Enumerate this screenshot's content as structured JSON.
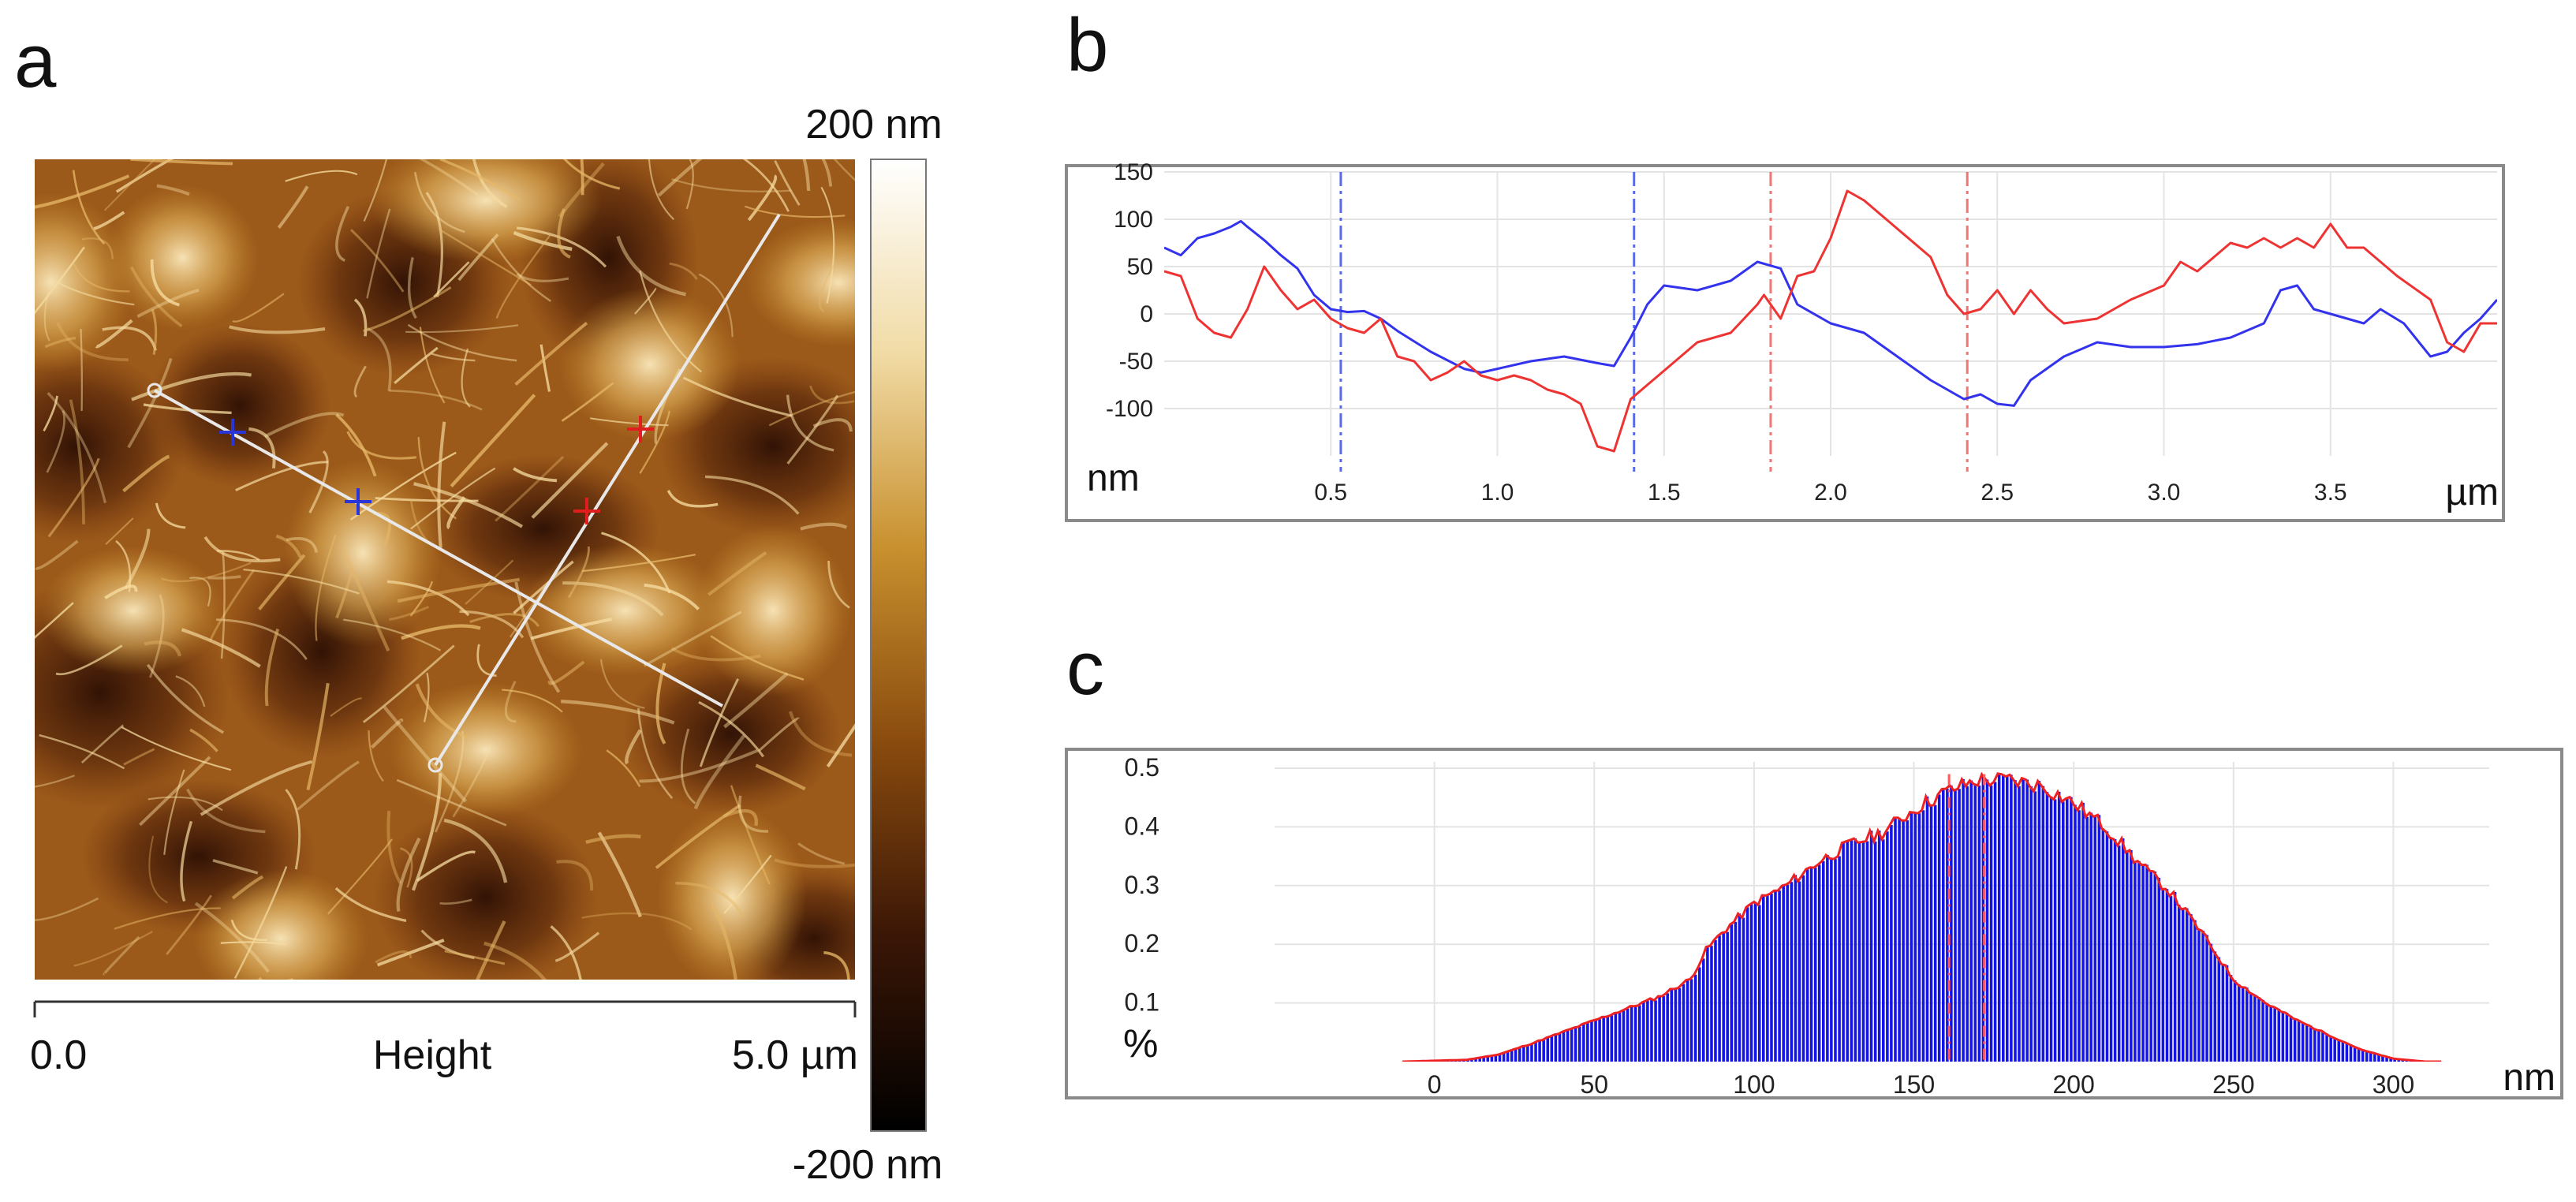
{
  "panels": {
    "a": "a",
    "b": "b",
    "c": "c"
  },
  "afm_image": {
    "colorbar_top": "200 nm",
    "colorbar_bottom": "-200 nm",
    "scale_start": "0.0",
    "scale_title": "Height",
    "scale_end": "5.0 µm",
    "colorbar_colors": [
      "#ffffff",
      "#f1dba5",
      "#c8902e",
      "#8a4b0e",
      "#3a1606",
      "#000000"
    ]
  },
  "chart_data": [
    {
      "type": "line",
      "panel": "b",
      "xlabel": "µm",
      "ylabel": "nm",
      "x_ticks": [
        "0.5",
        "1.0",
        "1.5",
        "2.0",
        "2.5",
        "3.0",
        "3.5"
      ],
      "y_ticks": [
        "150",
        "100",
        "50",
        "0",
        "-50",
        "-100"
      ],
      "xlim": [
        0.0,
        4.0
      ],
      "ylim": [
        -150,
        150
      ],
      "grid": true,
      "markers_x": [
        {
          "x": 0.53,
          "color": "#5a6ae6"
        },
        {
          "x": 1.41,
          "color": "#5a6ae6"
        },
        {
          "x": 1.82,
          "color": "#f07575"
        },
        {
          "x": 2.41,
          "color": "#f07575"
        }
      ],
      "series": [
        {
          "color": "#3333ee",
          "points": [
            [
              0.0,
              70
            ],
            [
              0.05,
              62
            ],
            [
              0.1,
              80
            ],
            [
              0.15,
              85
            ],
            [
              0.2,
              92
            ],
            [
              0.23,
              98
            ],
            [
              0.25,
              92
            ],
            [
              0.3,
              78
            ],
            [
              0.35,
              62
            ],
            [
              0.4,
              48
            ],
            [
              0.45,
              20
            ],
            [
              0.5,
              5
            ],
            [
              0.55,
              2
            ],
            [
              0.6,
              3
            ],
            [
              0.65,
              -5
            ],
            [
              0.7,
              -18
            ],
            [
              0.8,
              -40
            ],
            [
              0.9,
              -58
            ],
            [
              0.95,
              -62
            ],
            [
              1.0,
              -58
            ],
            [
              1.1,
              -50
            ],
            [
              1.2,
              -45
            ],
            [
              1.3,
              -52
            ],
            [
              1.35,
              -55
            ],
            [
              1.4,
              -25
            ],
            [
              1.45,
              10
            ],
            [
              1.5,
              30
            ],
            [
              1.6,
              25
            ],
            [
              1.7,
              35
            ],
            [
              1.78,
              55
            ],
            [
              1.85,
              48
            ],
            [
              1.9,
              10
            ],
            [
              2.0,
              -10
            ],
            [
              2.1,
              -20
            ],
            [
              2.2,
              -45
            ],
            [
              2.3,
              -70
            ],
            [
              2.4,
              -90
            ],
            [
              2.45,
              -85
            ],
            [
              2.5,
              -95
            ],
            [
              2.55,
              -97
            ],
            [
              2.6,
              -70
            ],
            [
              2.7,
              -45
            ],
            [
              2.8,
              -30
            ],
            [
              2.9,
              -35
            ],
            [
              3.0,
              -35
            ],
            [
              3.1,
              -32
            ],
            [
              3.2,
              -25
            ],
            [
              3.3,
              -10
            ],
            [
              3.35,
              25
            ],
            [
              3.4,
              30
            ],
            [
              3.45,
              5
            ],
            [
              3.5,
              0
            ],
            [
              3.6,
              -10
            ],
            [
              3.65,
              5
            ],
            [
              3.72,
              -10
            ],
            [
              3.8,
              -45
            ],
            [
              3.85,
              -40
            ],
            [
              3.9,
              -20
            ],
            [
              3.95,
              -5
            ],
            [
              4.0,
              15
            ]
          ]
        },
        {
          "color": "#ee3333",
          "points": [
            [
              0.0,
              45
            ],
            [
              0.05,
              40
            ],
            [
              0.1,
              -5
            ],
            [
              0.15,
              -20
            ],
            [
              0.2,
              -25
            ],
            [
              0.25,
              5
            ],
            [
              0.3,
              50
            ],
            [
              0.35,
              25
            ],
            [
              0.4,
              5
            ],
            [
              0.45,
              15
            ],
            [
              0.5,
              -5
            ],
            [
              0.55,
              -15
            ],
            [
              0.6,
              -20
            ],
            [
              0.65,
              -5
            ],
            [
              0.7,
              -45
            ],
            [
              0.75,
              -50
            ],
            [
              0.8,
              -70
            ],
            [
              0.85,
              -62
            ],
            [
              0.9,
              -50
            ],
            [
              0.95,
              -65
            ],
            [
              1.0,
              -70
            ],
            [
              1.05,
              -65
            ],
            [
              1.1,
              -70
            ],
            [
              1.15,
              -80
            ],
            [
              1.2,
              -85
            ],
            [
              1.25,
              -95
            ],
            [
              1.3,
              -140
            ],
            [
              1.35,
              -145
            ],
            [
              1.4,
              -90
            ],
            [
              1.45,
              -75
            ],
            [
              1.5,
              -60
            ],
            [
              1.6,
              -30
            ],
            [
              1.7,
              -20
            ],
            [
              1.78,
              10
            ],
            [
              1.8,
              20
            ],
            [
              1.85,
              -5
            ],
            [
              1.9,
              40
            ],
            [
              1.95,
              45
            ],
            [
              2.0,
              80
            ],
            [
              2.05,
              130
            ],
            [
              2.1,
              120
            ],
            [
              2.2,
              90
            ],
            [
              2.3,
              60
            ],
            [
              2.35,
              20
            ],
            [
              2.4,
              0
            ],
            [
              2.45,
              5
            ],
            [
              2.5,
              25
            ],
            [
              2.55,
              0
            ],
            [
              2.6,
              25
            ],
            [
              2.65,
              5
            ],
            [
              2.7,
              -10
            ],
            [
              2.8,
              -5
            ],
            [
              2.9,
              15
            ],
            [
              3.0,
              30
            ],
            [
              3.05,
              55
            ],
            [
              3.1,
              45
            ],
            [
              3.15,
              60
            ],
            [
              3.2,
              75
            ],
            [
              3.25,
              70
            ],
            [
              3.3,
              80
            ],
            [
              3.35,
              70
            ],
            [
              3.4,
              80
            ],
            [
              3.45,
              70
            ],
            [
              3.5,
              95
            ],
            [
              3.55,
              70
            ],
            [
              3.6,
              70
            ],
            [
              3.7,
              40
            ],
            [
              3.8,
              15
            ],
            [
              3.85,
              -30
            ],
            [
              3.9,
              -40
            ],
            [
              3.95,
              -10
            ],
            [
              4.0,
              -10
            ]
          ]
        }
      ]
    },
    {
      "type": "bar",
      "panel": "c",
      "xlabel": "nm",
      "ylabel": "%",
      "x_ticks": [
        "0",
        "50",
        "100",
        "150",
        "200",
        "250",
        "300"
      ],
      "y_ticks": [
        "0.5",
        "0.4",
        "0.3",
        "0.2",
        "0.1"
      ],
      "xlim": [
        -50,
        330
      ],
      "ylim": [
        0,
        0.5
      ],
      "grid": true,
      "bar_color": "#1414e6",
      "envelope_color": "#ee2222",
      "markers_x": [
        161,
        172
      ],
      "profile": [
        [
          -10,
          0
        ],
        [
          10,
          0.003
        ],
        [
          20,
          0.012
        ],
        [
          30,
          0.03
        ],
        [
          40,
          0.05
        ],
        [
          50,
          0.07
        ],
        [
          60,
          0.09
        ],
        [
          70,
          0.11
        ],
        [
          80,
          0.14
        ],
        [
          85,
          0.19
        ],
        [
          90,
          0.22
        ],
        [
          100,
          0.27
        ],
        [
          110,
          0.3
        ],
        [
          120,
          0.34
        ],
        [
          130,
          0.37
        ],
        [
          140,
          0.39
        ],
        [
          150,
          0.43
        ],
        [
          160,
          0.46
        ],
        [
          170,
          0.48
        ],
        [
          180,
          0.48
        ],
        [
          190,
          0.47
        ],
        [
          200,
          0.44
        ],
        [
          210,
          0.4
        ],
        [
          220,
          0.34
        ],
        [
          230,
          0.29
        ],
        [
          240,
          0.22
        ],
        [
          250,
          0.14
        ],
        [
          260,
          0.1
        ],
        [
          270,
          0.07
        ],
        [
          280,
          0.045
        ],
        [
          290,
          0.02
        ],
        [
          300,
          0.005
        ],
        [
          310,
          0.0
        ]
      ]
    }
  ]
}
